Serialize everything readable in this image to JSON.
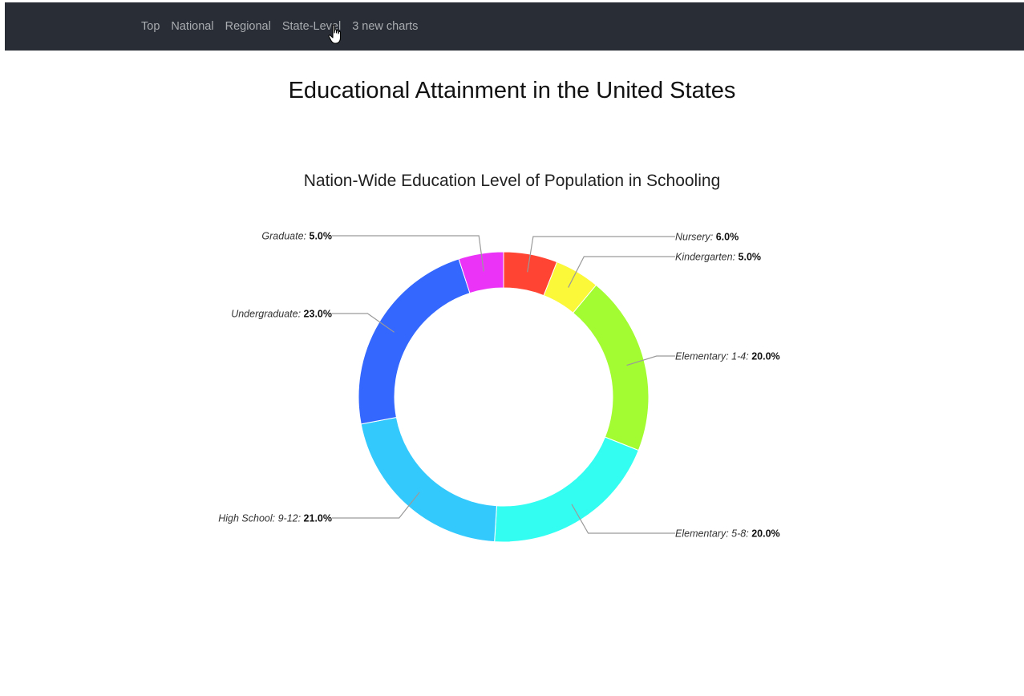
{
  "nav": {
    "links": [
      "Top",
      "National",
      "Regional",
      "State-Level",
      "3 new charts"
    ]
  },
  "page": {
    "title": "Educational Attainment in the United States"
  },
  "chart_data": {
    "type": "pie",
    "donut": true,
    "title": "Nation-Wide Education Level of Population in Schooling",
    "slices": [
      {
        "label": "Nursery",
        "value": 6.0,
        "display": "6.0%",
        "color": "#ff4433"
      },
      {
        "label": "Kindergarten",
        "value": 5.0,
        "display": "5.0%",
        "color": "#fbf739"
      },
      {
        "label": "Elementary: 1-4",
        "value": 20.0,
        "display": "20.0%",
        "color": "#a3fb32"
      },
      {
        "label": "Elementary: 5-8",
        "value": 20.0,
        "display": "20.0%",
        "color": "#33fdf1"
      },
      {
        "label": "High School: 9-12",
        "value": 21.0,
        "display": "21.0%",
        "color": "#33c9fd"
      },
      {
        "label": "Undergraduate",
        "value": 23.0,
        "display": "23.0%",
        "color": "#3367fd"
      },
      {
        "label": "Graduate",
        "value": 5.0,
        "display": "5.0%",
        "color": "#ea33f7"
      }
    ],
    "legend": "none"
  }
}
